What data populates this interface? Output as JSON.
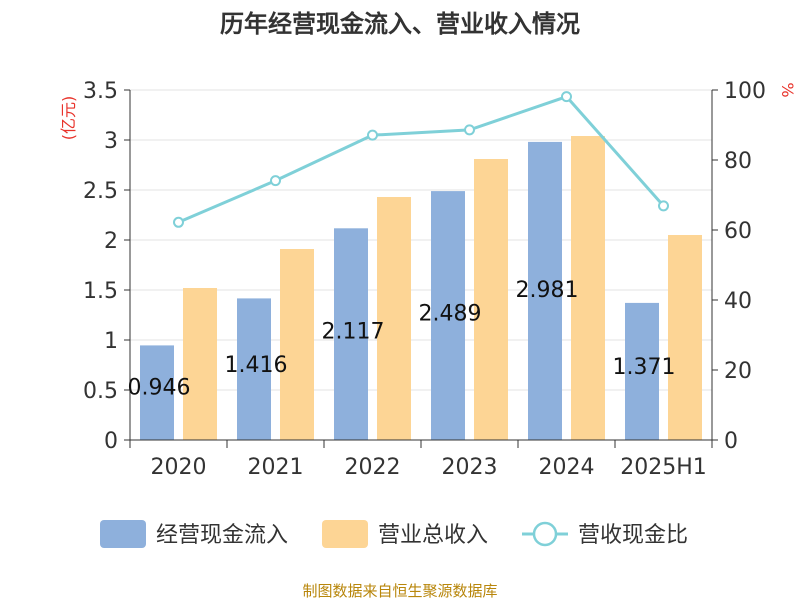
{
  "chart_data": {
    "type": "bar",
    "title": "历年经营现金流入、营业收入情况",
    "categories": [
      "2020",
      "2021",
      "2022",
      "2023",
      "2024",
      "2025H1"
    ],
    "series": [
      {
        "name": "经营现金流入",
        "type": "bar",
        "axis": "left",
        "color": "#8eb0dc",
        "values": [
          0.946,
          1.416,
          2.117,
          2.489,
          2.981,
          1.371
        ],
        "labels": [
          "0.946",
          "1.416",
          "2.117",
          "2.489",
          "2.981",
          "1.371"
        ]
      },
      {
        "name": "营业总收入",
        "type": "bar",
        "axis": "left",
        "color": "#fdd595",
        "values": [
          1.52,
          1.91,
          2.43,
          2.81,
          3.04,
          2.05
        ]
      },
      {
        "name": "营收现金比",
        "type": "line",
        "axis": "right",
        "color": "#7fd0d8",
        "values": [
          62.2,
          74.1,
          87.1,
          88.6,
          98.1,
          66.9
        ]
      }
    ],
    "y_left": {
      "label": "(亿元)",
      "min": 0,
      "max": 3.5,
      "ticks": [
        "0",
        "0.5",
        "1",
        "1.5",
        "2",
        "2.5",
        "3",
        "3.5"
      ]
    },
    "y_right": {
      "label": "%",
      "min": 0,
      "max": 100,
      "ticks": [
        "0",
        "20",
        "40",
        "60",
        "80",
        "100"
      ]
    },
    "legend_position": "bottom",
    "grid": "horizontal",
    "unit_color": "#e8332b"
  },
  "footer": {
    "source": "制图数据来自恒生聚源数据库"
  }
}
